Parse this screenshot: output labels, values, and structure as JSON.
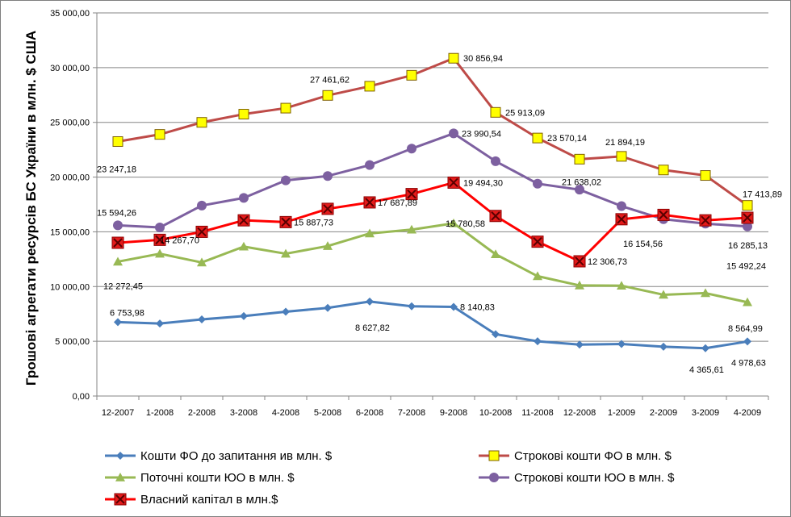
{
  "chart_data": {
    "type": "line",
    "title": "",
    "xlabel": "",
    "ylabel": "Грошові агрегати  ресурсів БС України  в млн. $ США",
    "ylim": [
      0,
      35000
    ],
    "y_ticks": [
      "0,00",
      "5 000,00",
      "10 000,00",
      "15 000,00",
      "20 000,00",
      "25 000,00",
      "30 000,00",
      "35 000,00"
    ],
    "y_tick_values": [
      0,
      5000,
      10000,
      15000,
      20000,
      25000,
      30000,
      35000
    ],
    "categories": [
      "12-2007",
      "1-2008",
      "2-2008",
      "3-2008",
      "4-2008",
      "5-2008",
      "6-2008",
      "7-2008",
      "9-2008",
      "10-2008",
      "11-2008",
      "12-2008",
      "1-2009",
      "2-2009",
      "3-2009",
      "4-2009"
    ],
    "grid": "horizontal",
    "legend_position": "bottom",
    "series": [
      {
        "name": "Кошти ФО до запитання ив млн. $",
        "color": "#4a7ebb",
        "marker": "diamond",
        "values": [
          6753.98,
          6620,
          7000,
          7300,
          7700,
          8050,
          8627.82,
          8200,
          8140.83,
          5650,
          5000,
          4700,
          4750,
          4500,
          4365.61,
          4978.63
        ],
        "labels": [
          {
            "i": 0,
            "text": "6 753,98"
          },
          {
            "i": 6,
            "text": "8 627,82"
          },
          {
            "i": 8,
            "text": "8 140,83"
          },
          {
            "i": 14,
            "text": "4 365,61"
          },
          {
            "i": 15,
            "text": "4 978,63"
          }
        ]
      },
      {
        "name": "Строкові кошти ФО в млн. $",
        "color": "#be4b48",
        "marker": "square",
        "marker_fill": "#ffff00",
        "values": [
          23247.18,
          23900,
          25000,
          25750,
          26300,
          27461.62,
          28300,
          29300,
          30856.94,
          25913.09,
          23570.14,
          21638.02,
          21894.19,
          20650,
          20150,
          17413.89
        ],
        "labels": [
          {
            "i": 0,
            "text": "23 247,18"
          },
          {
            "i": 5,
            "text": "27 461,62"
          },
          {
            "i": 8,
            "text": "30 856,94"
          },
          {
            "i": 9,
            "text": "25 913,09"
          },
          {
            "i": 10,
            "text": "23 570,14"
          },
          {
            "i": 11,
            "text": "21 638,02"
          },
          {
            "i": 12,
            "text": "21 894,19"
          },
          {
            "i": 15,
            "text": "17 413,89"
          }
        ]
      },
      {
        "name": "Поточні кошти ЮО в млн. $",
        "color": "#98b954",
        "marker": "triangle",
        "values": [
          12272.45,
          13000,
          12200,
          13650,
          13000,
          13700,
          14850,
          15200,
          15780.58,
          12950,
          10950,
          10100,
          10080,
          9250,
          9400,
          8564.99
        ],
        "labels": [
          {
            "i": 0,
            "text": "12 272,45"
          },
          {
            "i": 8,
            "text": "15 780,58"
          },
          {
            "i": 15,
            "text": "8 564,99"
          }
        ]
      },
      {
        "name": "Строкові кошти ЮО в млн. $",
        "color": "#7d60a0",
        "marker": "circle",
        "values": [
          15594.26,
          15400,
          17400,
          18100,
          19700,
          20100,
          21100,
          22600,
          23990.54,
          21450,
          19400,
          18850,
          17350,
          16154.56,
          15750,
          15492.24
        ],
        "labels": [
          {
            "i": 0,
            "text": "15 594,26"
          },
          {
            "i": 8,
            "text": "23 990,54"
          },
          {
            "i": 13,
            "text": "16 154,56"
          },
          {
            "i": 15,
            "text": "15 492,24"
          }
        ]
      },
      {
        "name": "Власний капітал в млн.$",
        "color": "#ff0000",
        "marker": "x-square",
        "marker_fill": "#e31b1b",
        "values": [
          14000,
          14267.7,
          15000,
          16050,
          15887.73,
          17100,
          17687.89,
          18450,
          19494.3,
          16450,
          14100,
          12306.73,
          16150,
          16550,
          16050,
          16285.13
        ],
        "labels": [
          {
            "i": 1,
            "text": "14 267,70"
          },
          {
            "i": 4,
            "text": "15 887,73"
          },
          {
            "i": 6,
            "text": "17 687,89"
          },
          {
            "i": 8,
            "text": "19 494,30"
          },
          {
            "i": 11,
            "text": "12 306,73"
          },
          {
            "i": 15,
            "text": "16 285,13"
          }
        ]
      }
    ]
  }
}
